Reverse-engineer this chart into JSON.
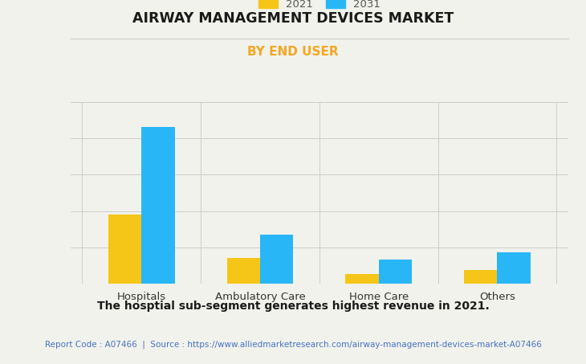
{
  "title": "AIRWAY MANAGEMENT DEVICES MARKET",
  "subtitle": "BY END USER",
  "categories": [
    "Hospitals",
    "Ambulatory Care",
    "Home Care",
    "Others"
  ],
  "values_2021": [
    4.2,
    1.55,
    0.62,
    0.82
  ],
  "values_2031": [
    9.5,
    3.0,
    1.45,
    1.9
  ],
  "color_2021": "#F5C518",
  "color_2031": "#29B6F6",
  "legend_labels": [
    "2021",
    "2031"
  ],
  "background_color": "#F2F2EC",
  "subtitle_color": "#F5A623",
  "title_color": "#1a1a1a",
  "footer_text": "The hosptial sub-segment generates highest revenue in 2021.",
  "report_text": "Report Code : A07466  |  Source : https://www.alliedmarketresearch.com/airway-management-devices-market-A07466",
  "report_color": "#4472C4",
  "grid_color": "#cccccc",
  "bar_width": 0.28,
  "ylim": [
    0,
    11
  ]
}
